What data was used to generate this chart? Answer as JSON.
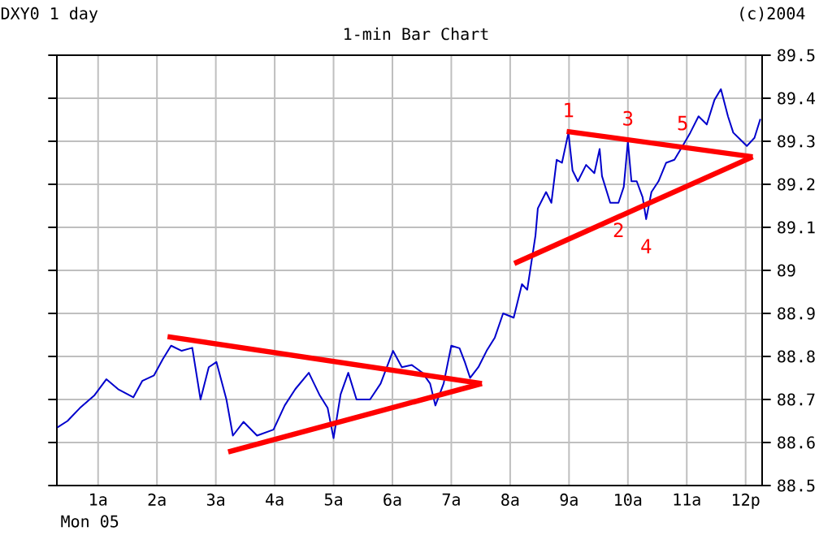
{
  "chart_data": {
    "type": "line",
    "title": "1-min Bar Chart",
    "subtitle": "DXY0 1 day",
    "xlabel": "Mon 05",
    "annotations": [
      "(c)2004",
      {
        "text": "1",
        "x": 8.99,
        "y": 89.32
      },
      {
        "text": "2",
        "x": 9.84,
        "y": 89.157
      },
      {
        "text": "3",
        "x": 10.0,
        "y": 89.3
      },
      {
        "text": "4",
        "x": 10.31,
        "y": 89.119
      },
      {
        "text": "5",
        "x": 10.93,
        "y": 89.289
      }
    ],
    "xlim": [
      0.3,
      12.28
    ],
    "ylim": [
      88.5,
      89.5
    ],
    "xticks": [
      {
        "value": 1,
        "label": "1a"
      },
      {
        "value": 2,
        "label": "2a"
      },
      {
        "value": 3,
        "label": "3a"
      },
      {
        "value": 4,
        "label": "4a"
      },
      {
        "value": 5,
        "label": "5a"
      },
      {
        "value": 6,
        "label": "6a"
      },
      {
        "value": 7,
        "label": "7a"
      },
      {
        "value": 8,
        "label": "8a"
      },
      {
        "value": 9,
        "label": "9a"
      },
      {
        "value": 10,
        "label": "10a"
      },
      {
        "value": 11,
        "label": "11a"
      },
      {
        "value": 12,
        "label": "12p"
      }
    ],
    "yticks": [
      88.5,
      88.6,
      88.7,
      88.8,
      88.9,
      89,
      89.1,
      89.2,
      89.3,
      89.4,
      89.5
    ],
    "grid": true,
    "series": [
      {
        "color": "#0000cc",
        "x": [
          0.31,
          0.48,
          0.69,
          0.94,
          1.14,
          1.34,
          1.6,
          1.75,
          1.95,
          2.1,
          2.24,
          2.42,
          2.6,
          2.74,
          2.88,
          3.01,
          3.18,
          3.29,
          3.47,
          3.7,
          3.98,
          4.17,
          4.35,
          4.58,
          4.76,
          4.9,
          5.0,
          5.12,
          5.25,
          5.39,
          5.62,
          5.8,
          6.01,
          6.16,
          6.33,
          6.51,
          6.64,
          6.73,
          6.87,
          7.0,
          7.14,
          7.23,
          7.32,
          7.46,
          7.6,
          7.74,
          7.88,
          8.06,
          8.2,
          8.29,
          8.43,
          8.47,
          8.61,
          8.7,
          8.79,
          8.88,
          8.99,
          9.06,
          9.15,
          9.29,
          9.43,
          9.52,
          9.56,
          9.7,
          9.84,
          9.93,
          10.0,
          10.06,
          10.15,
          10.25,
          10.31,
          10.4,
          10.52,
          10.65,
          10.79,
          10.93,
          11.06,
          11.2,
          11.34,
          11.47,
          11.58,
          11.7,
          11.79,
          11.88,
          12.02,
          12.15,
          12.25
        ],
        "values": [
          88.635,
          88.65,
          88.68,
          88.71,
          88.747,
          88.724,
          88.705,
          88.743,
          88.756,
          88.794,
          88.825,
          88.813,
          88.82,
          88.7,
          88.775,
          88.787,
          88.7,
          88.616,
          88.648,
          88.616,
          88.63,
          88.686,
          88.724,
          88.762,
          88.711,
          88.68,
          88.61,
          88.712,
          88.762,
          88.7,
          88.7,
          88.737,
          88.813,
          88.775,
          88.78,
          88.762,
          88.737,
          88.686,
          88.737,
          88.825,
          88.819,
          88.787,
          88.75,
          88.775,
          88.813,
          88.844,
          88.9,
          88.89,
          88.968,
          88.955,
          89.081,
          89.144,
          89.182,
          89.157,
          89.257,
          89.25,
          89.32,
          89.232,
          89.207,
          89.245,
          89.226,
          89.282,
          89.219,
          89.157,
          89.157,
          89.194,
          89.3,
          89.207,
          89.207,
          89.17,
          89.119,
          89.182,
          89.207,
          89.25,
          89.257,
          89.289,
          89.32,
          89.358,
          89.339,
          89.396,
          89.421,
          89.358,
          89.32,
          89.308,
          89.289,
          89.308,
          89.352
        ]
      },
      {
        "color": "#ff0000",
        "x": [
          2.18,
          7.52
        ],
        "values": [
          88.846,
          88.737
        ]
      },
      {
        "color": "#ff0000",
        "x": [
          3.21,
          7.52
        ],
        "values": [
          88.578,
          88.737
        ]
      },
      {
        "color": "#ff0000",
        "x": [
          8.96,
          12.12
        ],
        "values": [
          89.323,
          89.264
        ]
      },
      {
        "color": "#ff0000",
        "x": [
          8.07,
          12.12
        ],
        "values": [
          89.016,
          89.264
        ]
      }
    ]
  }
}
